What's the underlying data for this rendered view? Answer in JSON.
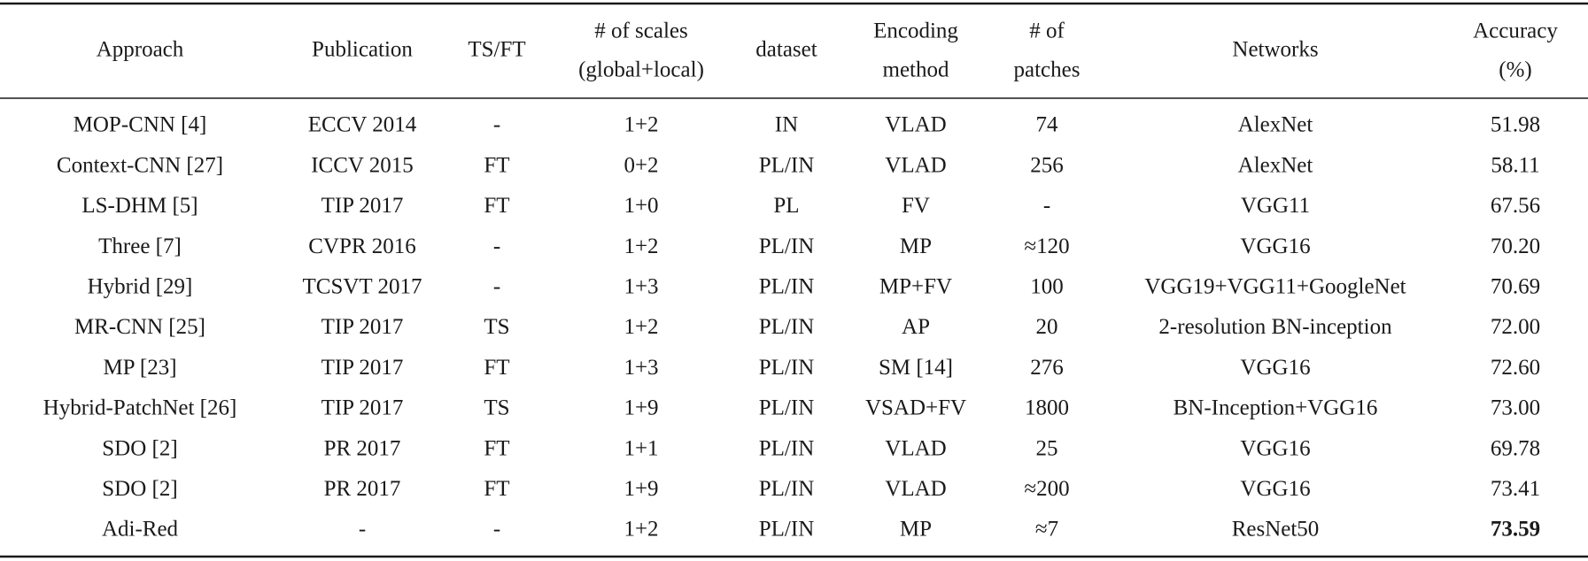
{
  "table": {
    "header": [
      [
        "Approach"
      ],
      [
        "Publication"
      ],
      [
        "TS/FT"
      ],
      [
        "# of scales",
        "(global+local)"
      ],
      [
        "dataset"
      ],
      [
        "Encoding",
        "method"
      ],
      [
        "# of",
        "patches"
      ],
      [
        "Networks"
      ],
      [
        "Accuracy",
        "(%)"
      ]
    ],
    "rows": [
      [
        "MOP-CNN [4]",
        "ECCV 2014",
        "-",
        "1+2",
        "IN",
        "VLAD",
        "74",
        "AlexNet",
        "51.98"
      ],
      [
        "Context-CNN [27]",
        "ICCV 2015",
        "FT",
        "0+2",
        "PL/IN",
        "VLAD",
        "256",
        "AlexNet",
        "58.11"
      ],
      [
        "LS-DHM [5]",
        "TIP 2017",
        "FT",
        "1+0",
        "PL",
        "FV",
        "-",
        "VGG11",
        "67.56"
      ],
      [
        "Three [7]",
        "CVPR 2016",
        "-",
        "1+2",
        "PL/IN",
        "MP",
        "≈120",
        "VGG16",
        "70.20"
      ],
      [
        "Hybrid [29]",
        "TCSVT 2017",
        "-",
        "1+3",
        "PL/IN",
        "MP+FV",
        "100",
        "VGG19+VGG11+GoogleNet",
        "70.69"
      ],
      [
        "MR-CNN [25]",
        "TIP 2017",
        "TS",
        "1+2",
        "PL/IN",
        "AP",
        "20",
        "2-resolution BN-inception",
        "72.00"
      ],
      [
        "MP [23]",
        "TIP 2017",
        "FT",
        "1+3",
        "PL/IN",
        "SM [14]",
        "276",
        "VGG16",
        "72.60"
      ],
      [
        "Hybrid-PatchNet [26]",
        "TIP 2017",
        "TS",
        "1+9",
        "PL/IN",
        "VSAD+FV",
        "1800",
        "BN-Inception+VGG16",
        "73.00"
      ],
      [
        "SDO [2]",
        "PR 2017",
        "FT",
        "1+1",
        "PL/IN",
        "VLAD",
        "25",
        "VGG16",
        "69.78"
      ],
      [
        "SDO [2]",
        "PR 2017",
        "FT",
        "1+9",
        "PL/IN",
        "VLAD",
        "≈200",
        "VGG16",
        "73.41"
      ],
      [
        "Adi-Red",
        "-",
        "-",
        "1+2",
        "PL/IN",
        "MP",
        "≈7",
        "ResNet50",
        "73.59"
      ]
    ]
  }
}
